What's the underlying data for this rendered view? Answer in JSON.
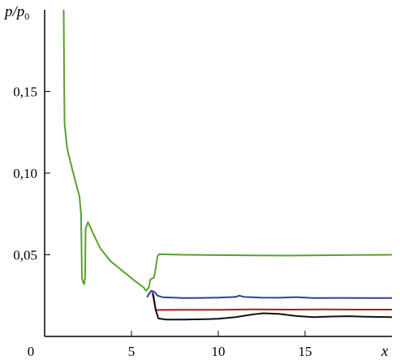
{
  "chart_data": {
    "type": "line",
    "ylabel_main": "p/p",
    "ylabel_sub": "0",
    "xlabel": "x",
    "xlim": [
      0,
      20
    ],
    "ylim": [
      0,
      0.2
    ],
    "x_ticks": [
      0,
      5,
      10,
      15
    ],
    "x_tick_labels": [
      "0",
      "5",
      "10",
      "15"
    ],
    "y_ticks": [
      0.05,
      0.1,
      0.15
    ],
    "y_tick_labels": [
      "0,05",
      "0,10",
      "0,15"
    ],
    "grid": false,
    "series": [
      {
        "color": "#5aa02c",
        "points": [
          [
            1.1,
            0.2
          ],
          [
            1.12,
            0.16
          ],
          [
            1.15,
            0.13
          ],
          [
            1.3,
            0.115
          ],
          [
            1.6,
            0.102
          ],
          [
            2.0,
            0.086
          ],
          [
            2.1,
            0.075
          ],
          [
            2.15,
            0.036
          ],
          [
            2.22,
            0.033
          ],
          [
            2.28,
            0.032
          ],
          [
            2.33,
            0.036
          ],
          [
            2.36,
            0.066
          ],
          [
            2.5,
            0.07
          ],
          [
            2.8,
            0.063
          ],
          [
            3.2,
            0.054
          ],
          [
            3.8,
            0.046
          ],
          [
            4.5,
            0.04
          ],
          [
            5.2,
            0.034
          ],
          [
            5.7,
            0.03
          ],
          [
            5.85,
            0.028
          ],
          [
            6.0,
            0.03
          ],
          [
            6.1,
            0.035
          ],
          [
            6.3,
            0.036
          ],
          [
            6.4,
            0.042
          ],
          [
            6.5,
            0.049
          ],
          [
            6.6,
            0.0503
          ],
          [
            8,
            0.05
          ],
          [
            10,
            0.0498
          ],
          [
            12,
            0.0496
          ],
          [
            14,
            0.0495
          ],
          [
            16,
            0.0497
          ],
          [
            18,
            0.0499
          ],
          [
            20,
            0.05
          ]
        ]
      },
      {
        "color": "#2e3f9a",
        "points": [
          [
            5.9,
            0.024
          ],
          [
            6.0,
            0.026
          ],
          [
            6.15,
            0.028
          ],
          [
            6.35,
            0.027
          ],
          [
            6.5,
            0.025
          ],
          [
            6.8,
            0.024
          ],
          [
            8,
            0.0235
          ],
          [
            9,
            0.0236
          ],
          [
            10,
            0.0238
          ],
          [
            11,
            0.0242
          ],
          [
            11.2,
            0.025
          ],
          [
            11.5,
            0.0242
          ],
          [
            12.5,
            0.0238
          ],
          [
            13.5,
            0.0237
          ],
          [
            14.5,
            0.0241
          ],
          [
            15.5,
            0.0235
          ],
          [
            17,
            0.0236
          ],
          [
            18.5,
            0.0235
          ],
          [
            20,
            0.0235
          ]
        ]
      },
      {
        "color": "#a02020",
        "points": [
          [
            6.2,
            0.027
          ],
          [
            6.3,
            0.022
          ],
          [
            6.4,
            0.016
          ],
          [
            6.6,
            0.0162
          ],
          [
            8,
            0.0163
          ],
          [
            10,
            0.0163
          ],
          [
            12,
            0.0165
          ],
          [
            14,
            0.0164
          ],
          [
            16,
            0.0165
          ],
          [
            18,
            0.0164
          ],
          [
            20,
            0.0164
          ]
        ]
      },
      {
        "color": "#111111",
        "points": [
          [
            6.25,
            0.026
          ],
          [
            6.4,
            0.016
          ],
          [
            6.55,
            0.011
          ],
          [
            7,
            0.0103
          ],
          [
            8,
            0.0103
          ],
          [
            9,
            0.0105
          ],
          [
            10,
            0.0108
          ],
          [
            11,
            0.0118
          ],
          [
            12,
            0.0135
          ],
          [
            12.6,
            0.0142
          ],
          [
            13.5,
            0.0138
          ],
          [
            14.5,
            0.0125
          ],
          [
            15.5,
            0.0118
          ],
          [
            16.5,
            0.0122
          ],
          [
            17.5,
            0.0124
          ],
          [
            18.5,
            0.0121
          ],
          [
            20,
            0.0118
          ]
        ]
      }
    ]
  }
}
